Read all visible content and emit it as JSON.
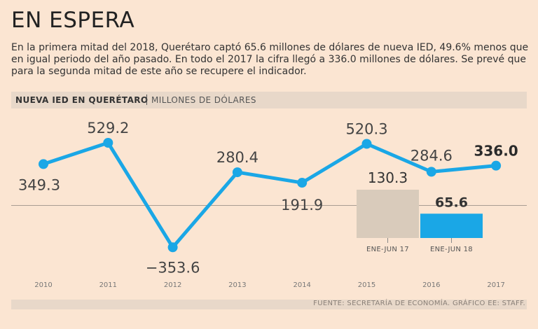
{
  "header": {
    "title": "EN ESPERA",
    "subtitle": "En la primera mitad del 2018, Querétaro captó 65.6 millones de dólares de nueva IED, 49.6% menos que en igual periodo del año pasado. En todo el 2017 la cifra llegó a 336.0 millones de dólares. Se prevé que para la segunda mitad de este año se recupere el indicador."
  },
  "chart_header": {
    "title": "NUEVA IED EN QUERÉTARO",
    "units": "MILLONES DE DÓLARES"
  },
  "footer": {
    "source": "FUENTE: SECRETARÍA DE ECONOMÍA. GRÁFICO EE: STAFF."
  },
  "colors": {
    "background": "#fbe5d2",
    "line": "#1aa7e6",
    "bar_2017": "#d9cbbb",
    "bar_2018": "#1aa7e6"
  },
  "chart_data": [
    {
      "type": "line",
      "title": "NUEVA IED EN QUERÉTARO",
      "ylabel": "MILLONES DE DÓLARES",
      "x": [
        "2010",
        "2011",
        "2012",
        "2013",
        "2014",
        "2015",
        "2016",
        "2017"
      ],
      "values": [
        349.3,
        529.2,
        -353.6,
        280.4,
        191.9,
        520.3,
        284.6,
        336.0
      ],
      "labels": [
        "349.3",
        "529.2",
        "−353.6",
        "280.4",
        "191.9",
        "520.3",
        "284.6",
        "336.0"
      ],
      "highlight_last": true,
      "ylim": [
        -400,
        560
      ]
    },
    {
      "type": "bar",
      "categories": [
        "ENE-JUN 17",
        "ENE-JUN 18"
      ],
      "values": [
        130.3,
        65.6
      ],
      "labels": [
        "130.3",
        "65.6"
      ]
    }
  ]
}
